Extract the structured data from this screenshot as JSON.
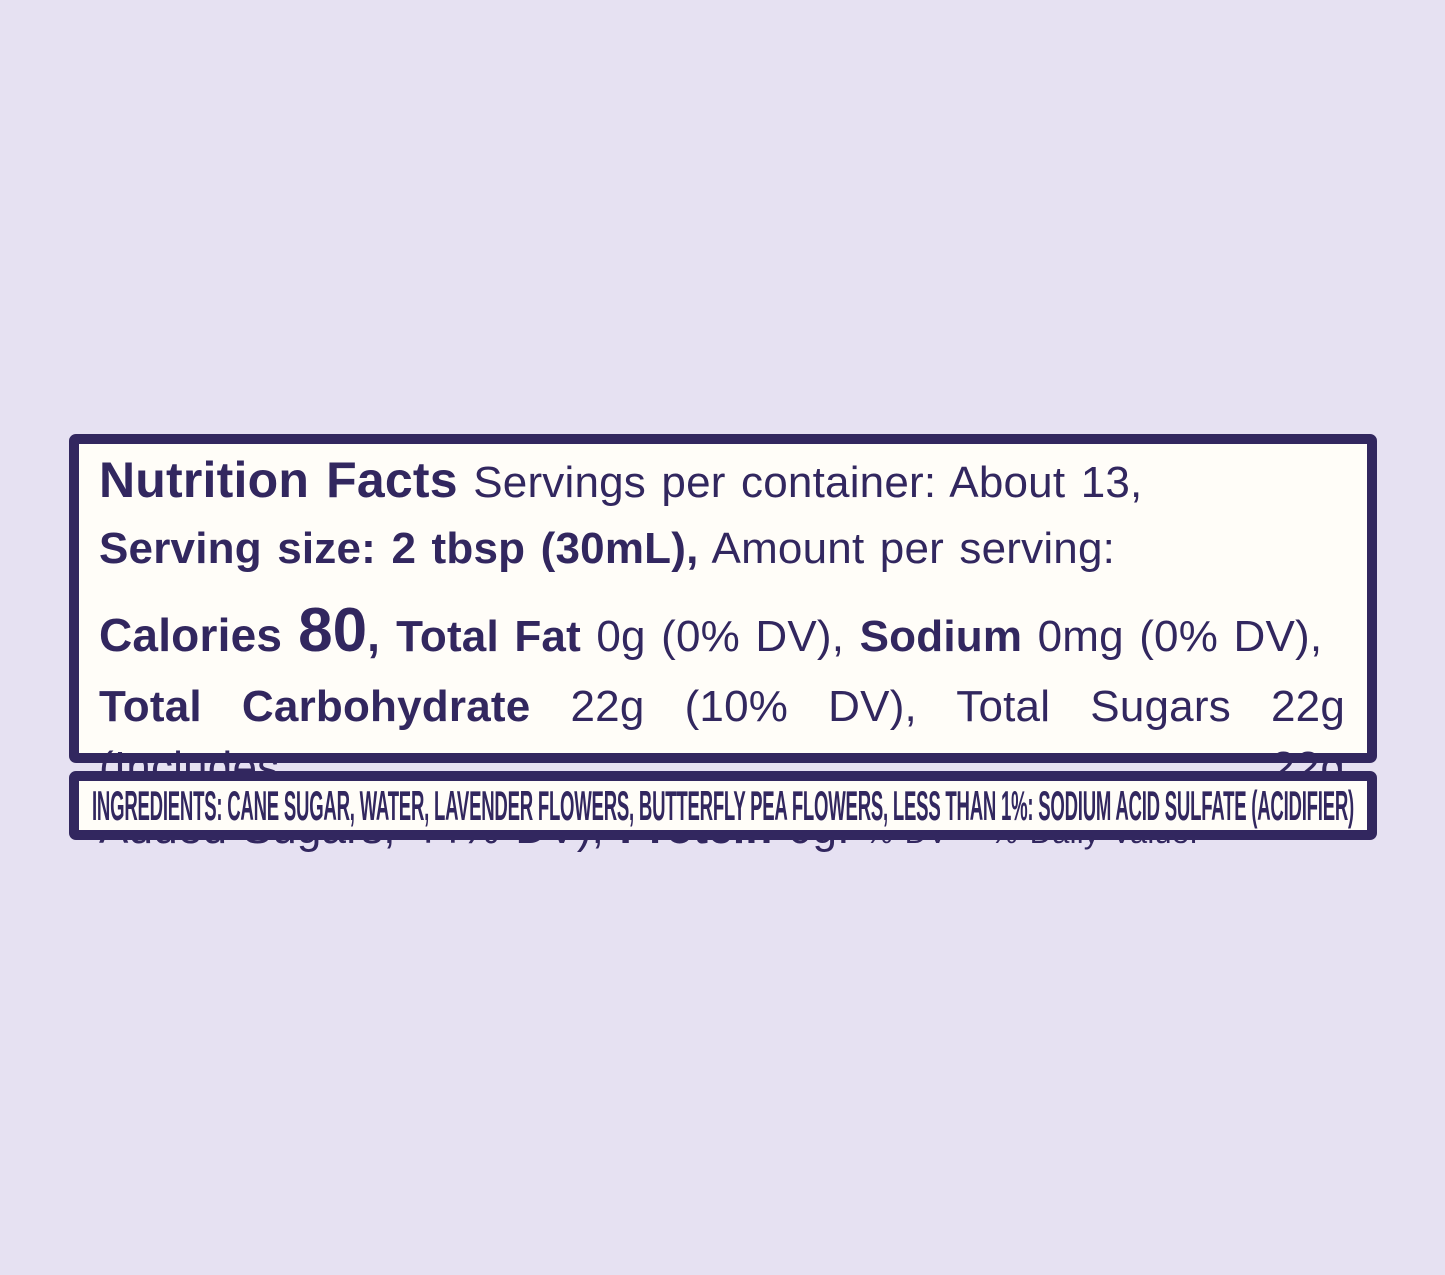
{
  "theme": {
    "background": "#e6e1f2",
    "ink": "#32275f",
    "panel": "#fffdf8"
  },
  "nutrition_panel": {
    "title": "Nutrition Facts",
    "servings_per_container": " Servings per container: About 13,",
    "serving_size": "Serving size: 2 tbsp (30mL),",
    "amount_per_serving": " Amount per serving:",
    "calories_label": "Calories ",
    "calories_value": "80",
    "calories_separator": ", ",
    "total_fat_label": "Total Fat",
    "total_fat_value": " 0g (0% DV), ",
    "sodium_label": "Sodium",
    "sodium_value": " 0mg (0% DV),",
    "carb_label": "Total Carbohydrate",
    "carb_value": " 22g (10% DV), Total Sugars 22g (Includes 22g",
    "added_sugars_value": "Added Sugars, 44% DV), ",
    "protein_label": "Protein",
    "protein_value": " 0g. ",
    "dv_note": "% DV = % Daily Value."
  },
  "ingredients_panel": {
    "text": "INGREDIENTS: CANE SUGAR, WATER, LAVENDER FLOWERS, BUTTERFLY PEA FLOWERS, LESS THAN 1%: SODIUM ACID SULFATE (ACIDIFIER)"
  }
}
